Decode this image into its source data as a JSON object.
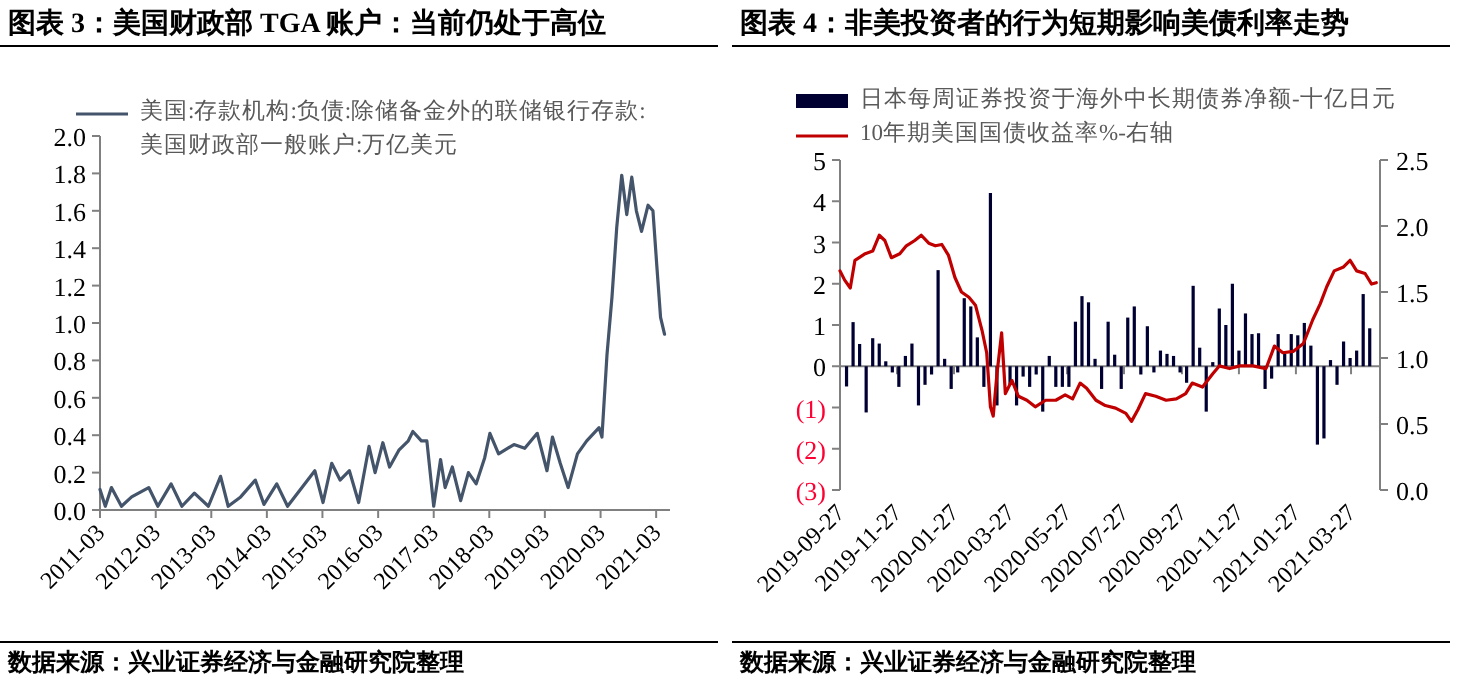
{
  "chart_data": [
    {
      "type": "line",
      "title": "图表 3：美国财政部 TGA 账户：当前仍处于高位",
      "annotations": [
        "数据来源：兴业证券经济与金融研究院整理"
      ],
      "legend": "top",
      "xlim": [
        "2011-03-01",
        "2021-05-31"
      ],
      "xticks": [
        "2011-03",
        "2012-03",
        "2013-03",
        "2014-03",
        "2015-03",
        "2016-03",
        "2017-03",
        "2018-03",
        "2019-03",
        "2020-03",
        "2021-03"
      ],
      "ylim": [
        0,
        2
      ],
      "yticks": [
        {
          "value": 0,
          "label": "0.0"
        },
        {
          "value": 0.2,
          "label": "0.2"
        },
        {
          "value": 0.4,
          "label": "0.4"
        },
        {
          "value": 0.6,
          "label": "0.6"
        },
        {
          "value": 0.8,
          "label": "0.8"
        },
        {
          "value": 1,
          "label": "1.0"
        },
        {
          "value": 1.2,
          "label": "1.2"
        },
        {
          "value": 1.4,
          "label": "1.4"
        },
        {
          "value": 1.6,
          "label": "1.6"
        },
        {
          "value": 1.8,
          "label": "1.8"
        },
        {
          "value": 2,
          "label": "2.0"
        }
      ],
      "series": [
        {
          "name": "美国:存款机构:负债:除储备金外的联储银行存款:美国财政部一般账户:万亿美元",
          "color": "#44546a",
          "x": [
            "2011-03-01",
            "2011-04-05",
            "2011-05-15",
            "2011-07-20",
            "2011-09-25",
            "2012-01-15",
            "2012-03-15",
            "2012-06-10",
            "2012-08-20",
            "2012-11-10",
            "2013-02-10",
            "2013-05-01",
            "2013-06-20",
            "2013-09-10",
            "2013-12-15",
            "2014-02-10",
            "2014-05-05",
            "2014-07-15",
            "2015-01-10",
            "2015-03-05",
            "2015-05-01",
            "2015-06-25",
            "2015-08-25",
            "2015-10-25",
            "2016-01-01",
            "2016-02-10",
            "2016-04-01",
            "2016-05-15",
            "2016-07-15",
            "2016-09-15",
            "2016-10-15",
            "2016-12-10",
            "2017-01-15",
            "2017-03-01",
            "2017-04-15",
            "2017-05-15",
            "2017-07-01",
            "2017-08-25",
            "2017-10-15",
            "2017-12-05",
            "2018-01-30",
            "2018-03-05",
            "2018-05-01",
            "2018-08-10",
            "2018-10-20",
            "2019-01-10",
            "2019-03-15",
            "2019-04-20",
            "2019-06-10",
            "2019-08-01",
            "2019-10-01",
            "2019-12-01",
            "2020-02-20",
            "2020-03-10",
            "2020-04-12",
            "2020-05-15",
            "2020-06-15",
            "2020-07-18",
            "2020-08-20",
            "2020-09-22",
            "2020-10-22",
            "2020-11-25",
            "2021-01-07",
            "2021-02-08",
            "2021-03-05",
            "2021-03-30",
            "2021-04-25"
          ],
          "values": [
            0.11,
            0.02,
            0.12,
            0.02,
            0.07,
            0.12,
            0.02,
            0.14,
            0.02,
            0.09,
            0.02,
            0.18,
            0.02,
            0.07,
            0.16,
            0.03,
            0.14,
            0.02,
            0.21,
            0.04,
            0.25,
            0.16,
            0.21,
            0.04,
            0.34,
            0.2,
            0.36,
            0.23,
            0.32,
            0.37,
            0.42,
            0.37,
            0.37,
            0.02,
            0.27,
            0.12,
            0.23,
            0.05,
            0.2,
            0.14,
            0.28,
            0.41,
            0.3,
            0.35,
            0.33,
            0.41,
            0.21,
            0.39,
            0.25,
            0.12,
            0.3,
            0.37,
            0.44,
            0.39,
            0.83,
            1.14,
            1.51,
            1.79,
            1.58,
            1.78,
            1.6,
            1.49,
            1.63,
            1.6,
            1.31,
            1.03,
            0.94
          ]
        }
      ]
    },
    {
      "type": "bar",
      "title": "图表 4：非美投资者的行为短期影响美债利率走势",
      "annotations": [
        "数据来源：兴业证券经济与金融研究院整理"
      ],
      "legend": "top",
      "xlim": [
        "2019-09-27",
        "2021-04-27"
      ],
      "xticks": [
        "2019-09-27",
        "2019-11-27",
        "2020-01-27",
        "2020-03-27",
        "2020-05-27",
        "2020-07-27",
        "2020-09-27",
        "2020-11-27",
        "2021-01-27",
        "2021-03-27"
      ],
      "ylim": [
        -3,
        5
      ],
      "yticks": [
        {
          "value": -3,
          "label": "(3)"
        },
        {
          "value": -2,
          "label": "(2)"
        },
        {
          "value": -1,
          "label": "(1)"
        },
        0,
        1,
        2,
        3,
        4,
        5
      ],
      "y2lim": [
        0,
        2.5
      ],
      "y2ticks": [
        {
          "value": 0,
          "label": "0.0"
        },
        {
          "value": 0.5,
          "label": "0.5"
        },
        {
          "value": 1,
          "label": "1.0"
        },
        {
          "value": 1.5,
          "label": "1.5"
        },
        {
          "value": 2,
          "label": "2.0"
        },
        {
          "value": 2.5,
          "label": "2.5"
        }
      ],
      "series": [
        {
          "name": "日本每周证券投资于海外中长期债券净额-十亿日元",
          "color": "#000033",
          "x": [
            "2019-10-04",
            "2019-10-11",
            "2019-10-18",
            "2019-10-25",
            "2019-11-01",
            "2019-11-08",
            "2019-11-15",
            "2019-11-22",
            "2019-11-29",
            "2019-12-06",
            "2019-12-13",
            "2019-12-20",
            "2019-12-27",
            "2020-01-03",
            "2020-01-10",
            "2020-01-17",
            "2020-01-24",
            "2020-01-31",
            "2020-02-07",
            "2020-02-14",
            "2020-02-21",
            "2020-02-28",
            "2020-03-06",
            "2020-03-13",
            "2020-03-20",
            "2020-03-27",
            "2020-04-03",
            "2020-04-10",
            "2020-04-17",
            "2020-04-24",
            "2020-05-01",
            "2020-05-08",
            "2020-05-15",
            "2020-05-22",
            "2020-05-29",
            "2020-06-05",
            "2020-06-12",
            "2020-06-19",
            "2020-06-26",
            "2020-07-03",
            "2020-07-10",
            "2020-07-17",
            "2020-07-24",
            "2020-07-31",
            "2020-08-07",
            "2020-08-14",
            "2020-08-21",
            "2020-08-28",
            "2020-09-04",
            "2020-09-11",
            "2020-09-18",
            "2020-09-25",
            "2020-10-02",
            "2020-10-09",
            "2020-10-16",
            "2020-10-23",
            "2020-10-30",
            "2020-11-06",
            "2020-11-13",
            "2020-11-20",
            "2020-11-27",
            "2020-12-04",
            "2020-12-11",
            "2020-12-18",
            "2020-12-25",
            "2021-01-01",
            "2021-01-08",
            "2021-01-15",
            "2021-01-22",
            "2021-01-29",
            "2021-02-05",
            "2021-02-12",
            "2021-02-19",
            "2021-02-26",
            "2021-03-05",
            "2021-03-12",
            "2021-03-19",
            "2021-03-26",
            "2021-04-02",
            "2021-04-09",
            "2021-04-16"
          ],
          "values": [
            -0.49,
            1.07,
            0.54,
            -1.12,
            0.68,
            0.55,
            0.12,
            -0.15,
            -0.5,
            0.25,
            0.55,
            -0.95,
            -0.45,
            -0.2,
            2.33,
            0.18,
            -0.55,
            -0.15,
            1.65,
            1.45,
            0.7,
            -0.5,
            4.2,
            -0.95,
            null,
            -0.45,
            -0.95,
            -0.25,
            -0.5,
            -0.2,
            -1.1,
            0.25,
            -0.5,
            -0.5,
            -0.5,
            1.08,
            1.7,
            1.55,
            0.18,
            -0.55,
            1.08,
            0.28,
            -0.55,
            1.18,
            1.45,
            -0.2,
            0.97,
            -0.15,
            0.38,
            0.3,
            0.25,
            -0.15,
            -0.4,
            1.95,
            0.45,
            -1.1,
            0.1,
            1.4,
            1.0,
            2.0,
            0.38,
            1.28,
            0.78,
            0.8,
            -0.55,
            -0.3,
            0.78,
            0.3,
            0.78,
            0.75,
            1.05,
            0.5,
            -1.9,
            -1.75,
            0.15,
            -0.45,
            0.6,
            0.2,
            0.38,
            1.75,
            0.92
          ]
        },
        {
          "name": "10年期美国国债收益率%-右轴",
          "type": "line",
          "axis": "y2",
          "color": "#c00000",
          "x": [
            "2019-09-27",
            "2019-10-02",
            "2019-10-08",
            "2019-10-13",
            "2019-10-24",
            "2019-11-01",
            "2019-11-08",
            "2019-11-14",
            "2019-11-21",
            "2019-11-30",
            "2019-12-07",
            "2019-12-16",
            "2019-12-23",
            "2019-12-31",
            "2020-01-07",
            "2020-01-14",
            "2020-01-21",
            "2020-01-28",
            "2020-02-04",
            "2020-02-12",
            "2020-02-19",
            "2020-02-26",
            "2020-03-02",
            "2020-03-06",
            "2020-03-09",
            "2020-03-13",
            "2020-03-18",
            "2020-03-22",
            "2020-03-29",
            "2020-04-05",
            "2020-04-14",
            "2020-04-23",
            "2020-05-04",
            "2020-05-15",
            "2020-05-25",
            "2020-06-02",
            "2020-06-10",
            "2020-06-17",
            "2020-06-27",
            "2020-07-07",
            "2020-07-18",
            "2020-07-29",
            "2020-08-04",
            "2020-08-11",
            "2020-08-19",
            "2020-08-30",
            "2020-09-10",
            "2020-09-21",
            "2020-10-01",
            "2020-10-08",
            "2020-10-19",
            "2020-10-30",
            "2020-11-06",
            "2020-11-17",
            "2020-11-28",
            "2020-12-12",
            "2020-12-26",
            "2021-01-04",
            "2021-01-13",
            "2021-01-24",
            "2021-02-04",
            "2021-02-14",
            "2021-02-22",
            "2021-03-01",
            "2021-03-09",
            "2021-03-19",
            "2021-03-26",
            "2021-04-02",
            "2021-04-11",
            "2021-04-18",
            "2021-04-23"
          ],
          "values": [
            1.66,
            1.59,
            1.53,
            1.74,
            1.79,
            1.81,
            1.93,
            1.89,
            1.76,
            1.79,
            1.85,
            1.89,
            1.93,
            1.87,
            1.85,
            1.86,
            1.78,
            1.61,
            1.5,
            1.46,
            1.4,
            1.21,
            1.04,
            0.63,
            0.56,
            0.88,
            1.19,
            0.73,
            0.83,
            0.71,
            0.68,
            0.63,
            0.68,
            0.68,
            0.72,
            0.69,
            0.81,
            0.77,
            0.68,
            0.64,
            0.62,
            0.58,
            0.52,
            0.61,
            0.73,
            0.71,
            0.68,
            0.69,
            0.73,
            0.81,
            0.78,
            0.88,
            0.94,
            0.92,
            0.94,
            0.94,
            0.92,
            1.09,
            1.04,
            1.05,
            1.11,
            1.29,
            1.41,
            1.54,
            1.66,
            1.69,
            1.74,
            1.66,
            1.64,
            1.56,
            1.57
          ]
        }
      ]
    }
  ]
}
